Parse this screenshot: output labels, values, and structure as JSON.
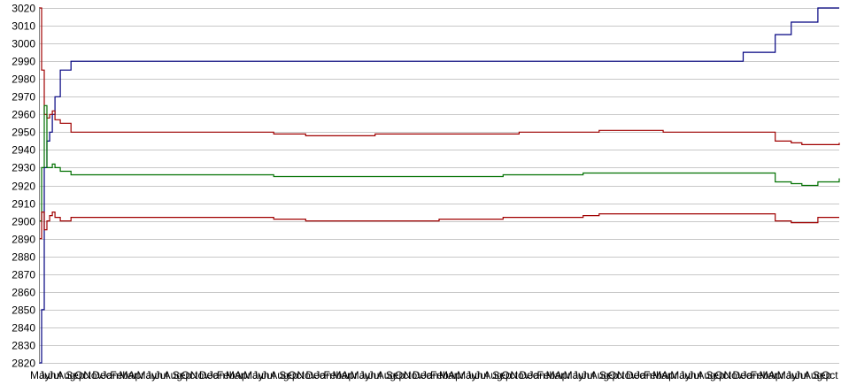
{
  "chart_data": {
    "type": "line",
    "title": "",
    "xlabel": "",
    "ylabel": "",
    "ylim": [
      2820,
      3020
    ],
    "y_ticks": [
      2820,
      2830,
      2840,
      2850,
      2860,
      2870,
      2880,
      2890,
      2900,
      2910,
      2920,
      2930,
      2940,
      2950,
      2960,
      2970,
      2980,
      2990,
      3000,
      3010,
      3020
    ],
    "grid": true,
    "legend": "none",
    "x_tick_labels": [
      "May",
      "Jun",
      "Jul",
      "Aug",
      "Sep",
      "Oct",
      "Nov",
      "Dec",
      "Jan",
      "Feb",
      "Mar",
      "Apr",
      "May",
      "Jun",
      "Jul",
      "Aug",
      "Sep",
      "Oct",
      "Nov",
      "Dec",
      "Jan",
      "Feb",
      "Mar",
      "Apr",
      "May",
      "Jun",
      "Jul",
      "Aug",
      "Sep",
      "Oct",
      "Nov",
      "Dec",
      "Jan",
      "Feb",
      "Mar",
      "Apr",
      "May",
      "Jun",
      "Jul",
      "Aug",
      "Sep",
      "Oct",
      "Nov",
      "Dec",
      "Jan",
      "Feb",
      "Mar",
      "Apr",
      "May",
      "Jun",
      "Jul",
      "Aug",
      "Sep",
      "Oct",
      "Nov",
      "Dec",
      "Jan",
      "Feb",
      "Mar",
      "Apr",
      "May",
      "Jun",
      "Jul",
      "Aug",
      "Sep",
      "Oct",
      "Nov",
      "Dec",
      "Jan",
      "Feb",
      "Mar",
      "Apr",
      "May",
      "Jun",
      "Jul",
      "Aug",
      "Sep",
      "Oct",
      "Nov",
      "Dec",
      "Jan",
      "Feb",
      "Mar",
      "Apr",
      "May",
      "Jun",
      "Jul",
      "Aug",
      "Sep",
      "Oct"
    ],
    "x": [
      0,
      1,
      2,
      3,
      4,
      5,
      6,
      8,
      12,
      20,
      30,
      40,
      50,
      60,
      70,
      80,
      88,
      96,
      100,
      104,
      108,
      112,
      116,
      120,
      123,
      126,
      130,
      134,
      138,
      140,
      144,
      150,
      156,
      162,
      168,
      174,
      180,
      186,
      192,
      198,
      204,
      210,
      216,
      222,
      228,
      234,
      240,
      246,
      252,
      258,
      264,
      270,
      276,
      282,
      286,
      292,
      300
    ],
    "series": [
      {
        "color": "#000080",
        "values": [
          2820,
          2850,
          2930,
          2945,
          2950,
          2960,
          2970,
          2985,
          2990,
          2990,
          2990,
          2990,
          2990,
          2990,
          2990,
          2990,
          2990,
          2990,
          2990,
          2990,
          2990,
          2990,
          2990,
          2990,
          2990,
          2990,
          2990,
          2990,
          2990,
          2990,
          2990,
          2990,
          2990,
          2990,
          2990,
          2990,
          2990,
          2990,
          2990,
          2990,
          2990,
          2990,
          2990,
          2990,
          2990,
          2990,
          2990,
          2990,
          2990,
          2990,
          2995,
          2995,
          3005,
          3012,
          3012,
          3020,
          3020
        ]
      },
      {
        "color": "#a00000",
        "values": [
          3020,
          2985,
          2960,
          2958,
          2960,
          2962,
          2957,
          2955,
          2950,
          2950,
          2950,
          2950,
          2950,
          2950,
          2950,
          2950,
          2949,
          2949,
          2948,
          2948,
          2948,
          2948,
          2948,
          2948,
          2948,
          2949,
          2949,
          2949,
          2949,
          2949,
          2949,
          2949,
          2949,
          2949,
          2949,
          2949,
          2950,
          2950,
          2950,
          2950,
          2950,
          2951,
          2951,
          2951,
          2951,
          2950,
          2950,
          2950,
          2950,
          2950,
          2950,
          2950,
          2945,
          2944,
          2943,
          2943,
          2944
        ]
      },
      {
        "color": "#007000",
        "values": [
          2900,
          2930,
          2965,
          2930,
          2930,
          2932,
          2930,
          2928,
          2926,
          2926,
          2926,
          2926,
          2926,
          2926,
          2926,
          2926,
          2925,
          2925,
          2925,
          2925,
          2925,
          2925,
          2925,
          2925,
          2925,
          2925,
          2925,
          2925,
          2925,
          2925,
          2925,
          2925,
          2925,
          2925,
          2925,
          2926,
          2926,
          2926,
          2926,
          2926,
          2927,
          2927,
          2927,
          2927,
          2927,
          2927,
          2927,
          2927,
          2927,
          2927,
          2927,
          2927,
          2922,
          2921,
          2920,
          2922,
          2924
        ]
      },
      {
        "color": "#a00000",
        "values": [
          2890,
          2905,
          2895,
          2900,
          2903,
          2905,
          2902,
          2900,
          2902,
          2902,
          2902,
          2902,
          2902,
          2902,
          2902,
          2902,
          2901,
          2901,
          2900,
          2900,
          2900,
          2900,
          2900,
          2900,
          2900,
          2900,
          2900,
          2900,
          2900,
          2900,
          2900,
          2901,
          2901,
          2901,
          2901,
          2902,
          2902,
          2902,
          2902,
          2902,
          2903,
          2904,
          2904,
          2904,
          2904,
          2904,
          2904,
          2904,
          2904,
          2904,
          2904,
          2904,
          2900,
          2899,
          2899,
          2902,
          2902
        ]
      }
    ]
  }
}
